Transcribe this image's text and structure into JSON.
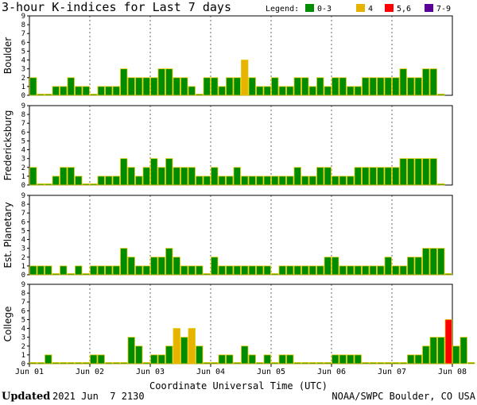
{
  "title": "3-hour K-indices for Last 7 days",
  "legend": {
    "label": "Legend:",
    "items": [
      {
        "label": "0-3",
        "color": "#008C00"
      },
      {
        "label": "4",
        "color": "#E6B400"
      },
      {
        "label": "5,6",
        "color": "#FF0000"
      },
      {
        "label": "7-9",
        "color": "#5A0096"
      }
    ]
  },
  "footer": {
    "updated_label": "Updated",
    "updated_value": "2021 Jun  7 2130",
    "source": "NOAA/SWPC Boulder, CO USA"
  },
  "chart_data": {
    "type": "bar",
    "xlabel": "Coordinate Universal Time (UTC)",
    "x_ticks": [
      "Jun 01",
      "Jun 02",
      "Jun 03",
      "Jun 04",
      "Jun 05",
      "Jun 06",
      "Jun 07",
      "Jun 08"
    ],
    "ylim": [
      0,
      9
    ],
    "y_ticks": [
      0,
      1,
      2,
      3,
      4,
      5,
      6,
      7,
      8,
      9
    ],
    "series": [
      {
        "name": "Boulder",
        "values": [
          2,
          0,
          0,
          1,
          1,
          2,
          1,
          1,
          0,
          1,
          1,
          1,
          3,
          2,
          2,
          2,
          2,
          3,
          3,
          2,
          2,
          1,
          0,
          2,
          2,
          1,
          2,
          2,
          4,
          2,
          1,
          1,
          2,
          1,
          1,
          2,
          2,
          1,
          2,
          1,
          2,
          2,
          1,
          1,
          2,
          2,
          2,
          2,
          2,
          3,
          2,
          2,
          3,
          3,
          0
        ]
      },
      {
        "name": "Fredericksburg",
        "values": [
          2,
          0,
          0,
          1,
          2,
          2,
          1,
          0,
          0,
          1,
          1,
          1,
          3,
          2,
          1,
          2,
          3,
          2,
          3,
          2,
          2,
          2,
          1,
          1,
          2,
          1,
          1,
          2,
          1,
          1,
          1,
          1,
          1,
          1,
          1,
          2,
          1,
          1,
          2,
          2,
          1,
          1,
          1,
          2,
          2,
          2,
          2,
          2,
          2,
          3,
          3,
          3,
          3,
          3,
          0
        ]
      },
      {
        "name": "Est. Planetary",
        "values": [
          1,
          1,
          1,
          0,
          1,
          0,
          1,
          0,
          1,
          1,
          1,
          1,
          3,
          2,
          1,
          1,
          2,
          2,
          3,
          2,
          1,
          1,
          1,
          0,
          2,
          1,
          1,
          1,
          1,
          1,
          1,
          1,
          0,
          1,
          1,
          1,
          1,
          1,
          1,
          2,
          2,
          1,
          1,
          1,
          1,
          1,
          1,
          2,
          1,
          1,
          2,
          2,
          3,
          3,
          3,
          0
        ]
      },
      {
        "name": "College",
        "values": [
          0,
          0,
          1,
          0,
          0,
          0,
          0,
          0,
          1,
          1,
          0,
          0,
          0,
          3,
          2,
          0,
          1,
          1,
          2,
          4,
          3,
          4,
          2,
          0,
          0,
          1,
          1,
          0,
          2,
          1,
          0,
          1,
          0,
          1,
          1,
          0,
          0,
          0,
          0,
          0,
          1,
          1,
          1,
          1,
          0,
          0,
          0,
          0,
          0,
          0,
          1,
          1,
          2,
          3,
          3,
          5,
          2,
          3,
          0
        ]
      }
    ]
  }
}
